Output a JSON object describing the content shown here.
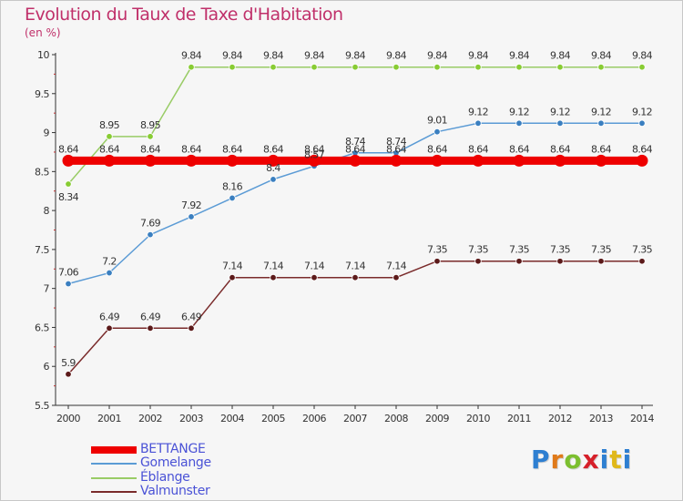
{
  "chart_data": {
    "type": "line",
    "title": "Evolution du Taux de Taxe d'Habitation",
    "subtitle": "(en %)",
    "x": [
      "2000",
      "2001",
      "2002",
      "2003",
      "2004",
      "2005",
      "2006",
      "2007",
      "2008",
      "2009",
      "2010",
      "2011",
      "2012",
      "2013",
      "2014"
    ],
    "ylim": [
      5.5,
      10
    ],
    "yticks": [
      "5.5",
      "6",
      "6.5",
      "7",
      "7.5",
      "8",
      "8.5",
      "9",
      "9.5",
      "10"
    ],
    "grid": false,
    "legend_position": "bottom-left",
    "series": [
      {
        "name": "BETTANGE",
        "color": "#ee0000",
        "values": [
          8.64,
          8.64,
          8.64,
          8.64,
          8.64,
          8.64,
          8.64,
          8.64,
          8.64,
          8.64,
          8.64,
          8.64,
          8.64,
          8.64,
          8.64
        ],
        "labels": [
          "8.64",
          "8.64",
          "8.64",
          "8.64",
          "8.64",
          "8.64",
          "8.64",
          "8.64",
          "8.64",
          "8.64",
          "8.64",
          "8.64",
          "8.64",
          "8.64",
          "8.64"
        ]
      },
      {
        "name": "Gomelange",
        "color": "#5b9bd5",
        "marker_color": "#3a7fc0",
        "values": [
          7.06,
          7.2,
          7.69,
          7.92,
          8.16,
          8.4,
          8.57,
          8.74,
          8.74,
          9.01,
          9.12,
          9.12,
          9.12,
          9.12,
          9.12
        ],
        "labels": [
          "7.06",
          "7.2",
          "7.69",
          "7.92",
          "8.16",
          "8.4",
          "8.57",
          "8.74",
          "8.74",
          "9.01",
          "9.12",
          "9.12",
          "9.12",
          "9.12",
          "9.12"
        ]
      },
      {
        "name": "Eblange",
        "color": "#99cc66",
        "marker_color": "#88cc33",
        "values": [
          8.34,
          8.95,
          8.95,
          9.84,
          9.84,
          9.84,
          9.84,
          9.84,
          9.84,
          9.84,
          9.84,
          9.84,
          9.84,
          9.84,
          9.84
        ],
        "labels": [
          "8.34",
          "8.95",
          "8.95",
          "9.84",
          "9.84",
          "9.84",
          "9.84",
          "9.84",
          "9.84",
          "9.84",
          "9.84",
          "9.84",
          "9.84",
          "9.84",
          "9.84"
        ]
      },
      {
        "name": "Valmunster",
        "color": "#7a2b2b",
        "marker_color": "#5c1a1a",
        "values": [
          5.9,
          6.49,
          6.49,
          6.49,
          7.14,
          7.14,
          7.14,
          7.14,
          7.14,
          7.35,
          7.35,
          7.35,
          7.35,
          7.35,
          7.35
        ],
        "labels": [
          "5.9",
          "6.49",
          "6.49",
          "6.49",
          "7.14",
          "7.14",
          "7.14",
          "7.14",
          "7.14",
          "7.35",
          "7.35",
          "7.35",
          "7.35",
          "7.35",
          "7.35"
        ]
      }
    ]
  },
  "legend": [
    {
      "label": "BETTANGE",
      "color": "#ee0000"
    },
    {
      "label": "Gomelange",
      "color": "#5b9bd5"
    },
    {
      "label": "Éblange",
      "color": "#99cc66"
    },
    {
      "label": "Valmunster",
      "color": "#7a2b2b"
    }
  ],
  "logo": {
    "letters": [
      "P",
      "r",
      "o",
      "x",
      "i",
      "t",
      "i"
    ],
    "colors": [
      "#2e7fd1",
      "#e07a1a",
      "#7cbf2f",
      "#d6202a",
      "#2e7fd1",
      "#e0b81a",
      "#2e7fd1"
    ]
  }
}
